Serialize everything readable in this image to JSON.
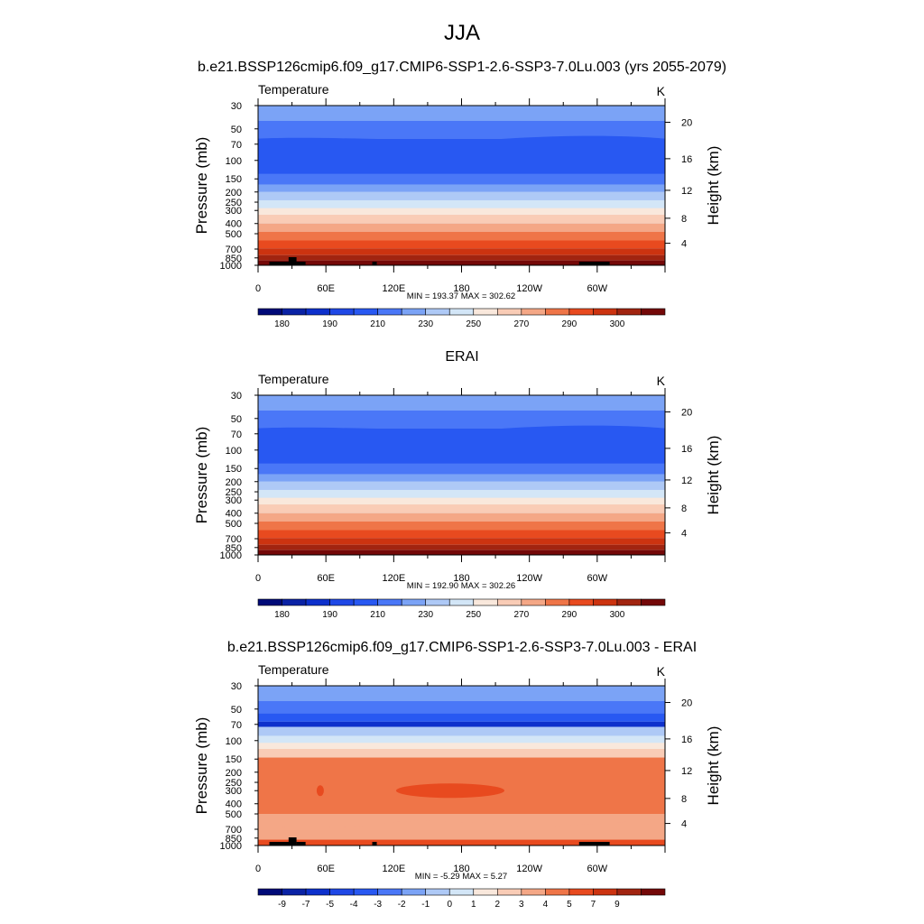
{
  "figure": {
    "title": "JJA",
    "units": "K",
    "variable": "Temperature",
    "left_axis_title": "Pressure (mb)",
    "right_axis_title": "Height (km)",
    "pressure_ticks": [
      "30",
      "50",
      "70",
      "100",
      "150",
      "200",
      "250",
      "300",
      "400",
      "500",
      "700",
      "850",
      "1000"
    ],
    "height_ticks": [
      "20",
      "16",
      "12",
      "8",
      "4"
    ],
    "lon_ticks": [
      "0",
      "60E",
      "120E",
      "180",
      "120W",
      "60W"
    ]
  },
  "panels": [
    {
      "title": "b.e21.BSSP126cmip6.f09_g17.CMIP6-SSP1-2.6-SSP3-7.0Lu.003 (yrs 2055-2079)",
      "minmax": "MIN = 193.37  MAX = 302.62",
      "colorbar_labels": [
        "180",
        "190",
        "210",
        "230",
        "250",
        "270",
        "290",
        "300"
      ]
    },
    {
      "title": "ERAI",
      "minmax": "MIN = 192.90  MAX = 302.26",
      "colorbar_labels": [
        "180",
        "190",
        "210",
        "230",
        "250",
        "270",
        "290",
        "300"
      ]
    },
    {
      "title": "b.e21.BSSP126cmip6.f09_g17.CMIP6-SSP1-2.6-SSP3-7.0Lu.003 - ERAI",
      "minmax": "MIN =  -5.29  MAX =   5.27",
      "colorbar_labels": [
        "-9",
        "-7",
        "-5",
        "-4",
        "-3",
        "-2",
        "-1",
        "0",
        "1",
        "2",
        "3",
        "4",
        "5",
        "7",
        "9"
      ]
    }
  ],
  "colors": {
    "blue_red_16": [
      "#000a78",
      "#0a22a5",
      "#0d30cc",
      "#1f48e6",
      "#2858f2",
      "#4a77f7",
      "#7ba3f6",
      "#aec9f6",
      "#d3e6f7",
      "#f9e8dc",
      "#f9ccb6",
      "#f4a786",
      "#ef7548",
      "#e84a1f",
      "#cc3310",
      "#a12410",
      "#740808"
    ]
  },
  "chart_data": [
    {
      "type": "heatmap",
      "title": "b.e21.BSSP126cmip6.f09_g17.CMIP6-SSP1-2.6-SSP3-7.0Lu.003 (yrs 2055-2079)",
      "variable": "Temperature",
      "units": "K",
      "x_axis": {
        "ticks": [
          "0",
          "60E",
          "120E",
          "180",
          "120W",
          "60W"
        ],
        "range_deg_east": [
          0,
          360
        ]
      },
      "y_axis": {
        "label": "Pressure (mb)",
        "scale": "log",
        "reversed": true,
        "range": [
          30,
          1000
        ]
      },
      "y2_axis": {
        "label": "Height (km)",
        "ticks": [
          20,
          16,
          12,
          8,
          4
        ]
      },
      "contour_levels": [
        180,
        185,
        190,
        200,
        210,
        220,
        230,
        240,
        250,
        260,
        270,
        280,
        290,
        295,
        300,
        305
      ],
      "colorbar_labels": [
        "180",
        "190",
        "210",
        "230",
        "250",
        "270",
        "290",
        "300"
      ],
      "min": 193.37,
      "max": 302.62,
      "band_levels_top_to_bottom": [
        {
          "p_top": 30,
          "p_bottom": 42,
          "level_index": 6
        },
        {
          "p_top": 42,
          "p_bottom": 62,
          "level_index": 5
        },
        {
          "p_top": 62,
          "p_bottom": 135,
          "level_index": 4
        },
        {
          "p_top": 135,
          "p_bottom": 170,
          "level_index": 5
        },
        {
          "p_top": 170,
          "p_bottom": 200,
          "level_index": 6
        },
        {
          "p_top": 200,
          "p_bottom": 240,
          "level_index": 7
        },
        {
          "p_top": 240,
          "p_bottom": 285,
          "level_index": 8
        },
        {
          "p_top": 285,
          "p_bottom": 330,
          "level_index": 9
        },
        {
          "p_top": 330,
          "p_bottom": 400,
          "level_index": 10
        },
        {
          "p_top": 400,
          "p_bottom": 480,
          "level_index": 11
        },
        {
          "p_top": 480,
          "p_bottom": 580,
          "level_index": 12
        },
        {
          "p_top": 580,
          "p_bottom": 690,
          "level_index": 13
        },
        {
          "p_top": 690,
          "p_bottom": 800,
          "level_index": 14
        },
        {
          "p_top": 800,
          "p_bottom": 900,
          "level_index": 15
        },
        {
          "p_top": 900,
          "p_bottom": 1000,
          "level_index": 16
        }
      ]
    },
    {
      "type": "heatmap",
      "title": "ERAI",
      "variable": "Temperature",
      "units": "K",
      "x_axis": {
        "ticks": [
          "0",
          "60E",
          "120E",
          "180",
          "120W",
          "60W"
        ],
        "range_deg_east": [
          0,
          360
        ]
      },
      "y_axis": {
        "label": "Pressure (mb)",
        "scale": "log",
        "reversed": true,
        "range": [
          30,
          1000
        ]
      },
      "y2_axis": {
        "label": "Height (km)",
        "ticks": [
          20,
          16,
          12,
          8,
          4
        ]
      },
      "contour_levels": [
        180,
        185,
        190,
        200,
        210,
        220,
        230,
        240,
        250,
        260,
        270,
        280,
        290,
        295,
        300,
        305
      ],
      "colorbar_labels": [
        "180",
        "190",
        "210",
        "230",
        "250",
        "270",
        "290",
        "300"
      ],
      "min": 192.9,
      "max": 302.26,
      "band_levels_top_to_bottom": [
        {
          "p_top": 30,
          "p_bottom": 42,
          "level_index": 6
        },
        {
          "p_top": 42,
          "p_bottom": 62,
          "level_index": 5
        },
        {
          "p_top": 62,
          "p_bottom": 135,
          "level_index": 4
        },
        {
          "p_top": 135,
          "p_bottom": 170,
          "level_index": 5
        },
        {
          "p_top": 170,
          "p_bottom": 200,
          "level_index": 6
        },
        {
          "p_top": 200,
          "p_bottom": 240,
          "level_index": 7
        },
        {
          "p_top": 240,
          "p_bottom": 285,
          "level_index": 8
        },
        {
          "p_top": 285,
          "p_bottom": 330,
          "level_index": 9
        },
        {
          "p_top": 330,
          "p_bottom": 400,
          "level_index": 10
        },
        {
          "p_top": 400,
          "p_bottom": 480,
          "level_index": 11
        },
        {
          "p_top": 480,
          "p_bottom": 580,
          "level_index": 12
        },
        {
          "p_top": 580,
          "p_bottom": 690,
          "level_index": 13
        },
        {
          "p_top": 690,
          "p_bottom": 800,
          "level_index": 14
        },
        {
          "p_top": 800,
          "p_bottom": 900,
          "level_index": 15
        },
        {
          "p_top": 900,
          "p_bottom": 1000,
          "level_index": 16
        }
      ]
    },
    {
      "type": "heatmap",
      "title": "b.e21.BSSP126cmip6.f09_g17.CMIP6-SSP1-2.6-SSP3-7.0Lu.003 - ERAI",
      "variable": "Temperature",
      "units": "K",
      "x_axis": {
        "ticks": [
          "0",
          "60E",
          "120E",
          "180",
          "120W",
          "60W"
        ],
        "range_deg_east": [
          0,
          360
        ]
      },
      "y_axis": {
        "label": "Pressure (mb)",
        "scale": "log",
        "reversed": true,
        "range": [
          30,
          1000
        ]
      },
      "y2_axis": {
        "label": "Height (km)",
        "ticks": [
          20,
          16,
          12,
          8,
          4
        ]
      },
      "contour_levels": [
        -9,
        -7,
        -5,
        -4,
        -3,
        -2,
        -1,
        0,
        1,
        2,
        3,
        4,
        5,
        7,
        9
      ],
      "colorbar_labels": [
        "-9",
        "-7",
        "-5",
        "-4",
        "-3",
        "-2",
        "-1",
        "0",
        "1",
        "2",
        "3",
        "4",
        "5",
        "7",
        "9"
      ],
      "min": -5.29,
      "max": 5.27,
      "band_levels_top_to_bottom": [
        {
          "p_top": 30,
          "p_bottom": 42,
          "level_index": 6
        },
        {
          "p_top": 42,
          "p_bottom": 55,
          "level_index": 5
        },
        {
          "p_top": 55,
          "p_bottom": 66,
          "level_index": 4
        },
        {
          "p_top": 66,
          "p_bottom": 74,
          "level_index": 2
        },
        {
          "p_top": 74,
          "p_bottom": 90,
          "level_index": 7
        },
        {
          "p_top": 90,
          "p_bottom": 105,
          "level_index": 8
        },
        {
          "p_top": 105,
          "p_bottom": 120,
          "level_index": 9
        },
        {
          "p_top": 120,
          "p_bottom": 145,
          "level_index": 10
        },
        {
          "p_top": 145,
          "p_bottom": 500,
          "level_index": 12
        },
        {
          "p_top": 500,
          "p_bottom": 880,
          "level_index": 11
        },
        {
          "p_top": 880,
          "p_bottom": 1000,
          "level_index": 13
        }
      ]
    }
  ]
}
